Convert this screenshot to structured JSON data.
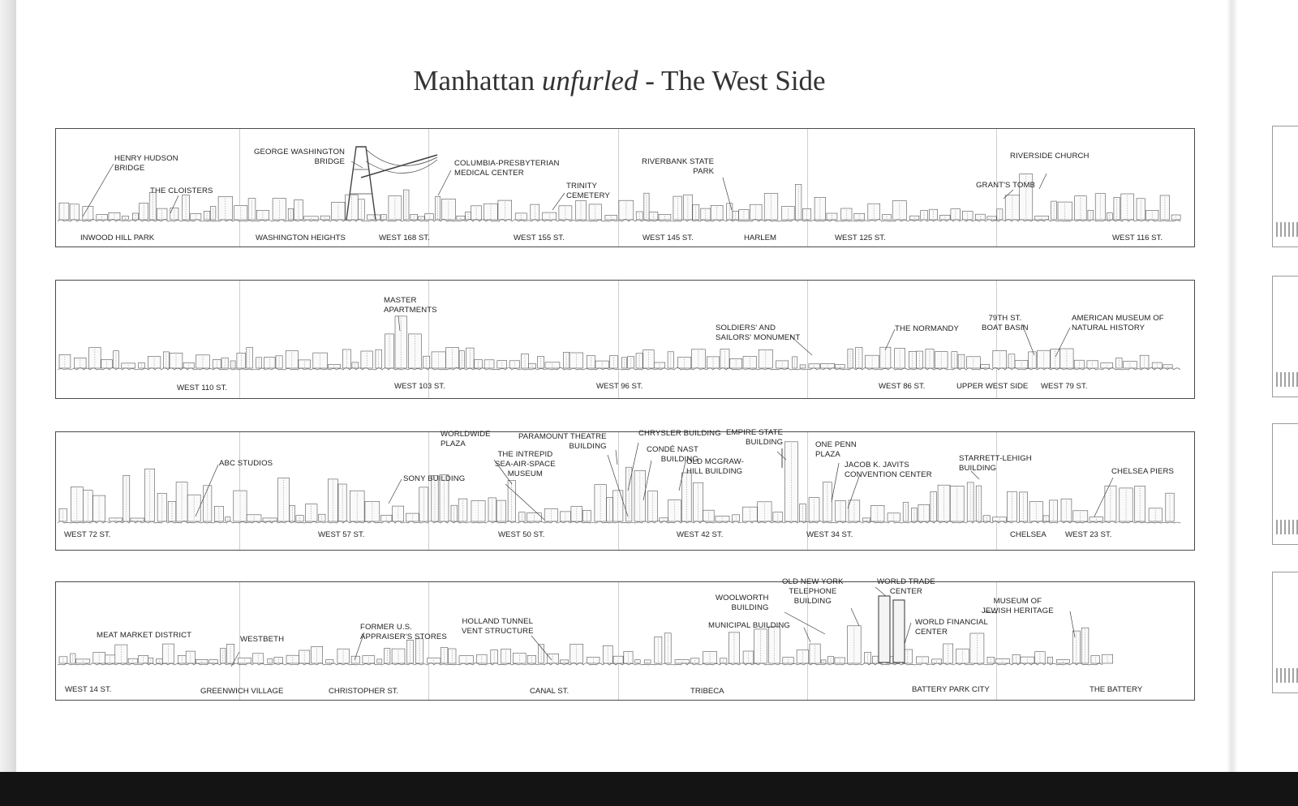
{
  "title": {
    "before": "Manhattan ",
    "italic": "unfurled",
    "after": " - The West Side"
  },
  "strips": [
    {
      "landmarks": {
        "henry_hudson_bridge": "HENRY HUDSON\nBRIDGE",
        "the_cloisters": "THE CLOISTERS",
        "george_washington_bridge": "GEORGE WASHINGTON\nBRIDGE",
        "columbia_presbyterian": "COLUMBIA-PRESBYTERIAN\nMEDICAL CENTER",
        "trinity_cemetery": "TRINITY\nCEMETERY",
        "riverbank_state_park": "RIVERBANK STATE\nPARK",
        "riverside_church": "RIVERSIDE CHURCH",
        "grants_tomb": "GRANT'S TOMB"
      },
      "streets": {
        "inwood_hill_park": "INWOOD HILL PARK",
        "washington_heights": "WASHINGTON HEIGHTS",
        "west_168": "WEST 168 ST.",
        "west_155": "WEST 155 ST.",
        "west_145": "WEST 145 ST.",
        "harlem": "HARLEM",
        "west_125": "WEST 125 ST.",
        "west_116": "WEST 116 ST."
      }
    },
    {
      "landmarks": {
        "master_apartments": "MASTER\nAPARTMENTS",
        "soldiers_sailors": "SOLDIERS' AND\nSAILORS' MONUMENT",
        "the_normandy": "THE NORMANDY",
        "boat_basin": "79TH ST.\nBOAT BASIN",
        "natural_history": "AMERICAN MUSEUM OF\nNATURAL HISTORY"
      },
      "streets": {
        "west_110": "WEST 110 ST.",
        "west_103": "WEST 103 ST.",
        "west_96": "WEST 96 ST.",
        "west_86": "WEST 86 ST.",
        "upper_west_side": "UPPER WEST SIDE",
        "west_79": "WEST 79 ST."
      }
    },
    {
      "landmarks": {
        "abc_studios": "ABC STUDIOS",
        "worldwide_plaza": "WORLDWIDE\nPLAZA",
        "intrepid": "THE INTREPID\nSEA-AIR-SPACE\nMUSEUM",
        "sony_building": "SONY BUILDING",
        "paramount": "PARAMOUNT THEATRE\nBUILDING",
        "chrysler": "CHRYSLER BUILDING",
        "conde_nast": "CONDÉ NAST\nBUILDING",
        "mcgraw_hill": "OLD McGRAW-\nHILL BUILDING",
        "empire_state": "EMPIRE STATE\nBUILDING",
        "one_penn": "ONE PENN\nPLAZA",
        "javits": "JACOB K. JAVITS\nCONVENTION CENTER",
        "starrett_lehigh": "STARRETT-LEHIGH\nBUILDING",
        "chelsea_piers": "CHELSEA PIERS"
      },
      "streets": {
        "west_72": "WEST 72 ST.",
        "west_57": "WEST 57 ST.",
        "west_50": "WEST 50 ST.",
        "west_42": "WEST 42 ST.",
        "west_34": "WEST 34 ST.",
        "chelsea": "CHELSEA",
        "west_23": "WEST 23 ST."
      }
    },
    {
      "landmarks": {
        "meat_market": "MEAT MARKET DISTRICT",
        "westbeth": "WESTBETH",
        "appraisers": "FORMER U.S.\nAPPRAISER'S STORES",
        "holland_tunnel": "HOLLAND TUNNEL\nVENT STRUCTURE",
        "woolworth": "WOOLWORTH\nBUILDING",
        "municipal": "MUNICIPAL BUILDING",
        "ny_telephone": "OLD NEW YORK\nTELEPHONE\nBUILDING",
        "world_trade_center": "WORLD TRADE\nCENTER",
        "world_financial": "WORLD FINANCIAL\nCENTER",
        "jewish_heritage": "MUSEUM OF\nJEWISH HERITAGE"
      },
      "streets": {
        "west_14": "WEST 14 ST.",
        "greenwich_village": "GREENWICH VILLAGE",
        "christopher": "CHRISTOPHER ST.",
        "canal": "CANAL ST.",
        "tribeca": "TRIBECA",
        "battery_park_city": "BATTERY PARK CITY",
        "the_battery": "THE BATTERY"
      }
    }
  ]
}
